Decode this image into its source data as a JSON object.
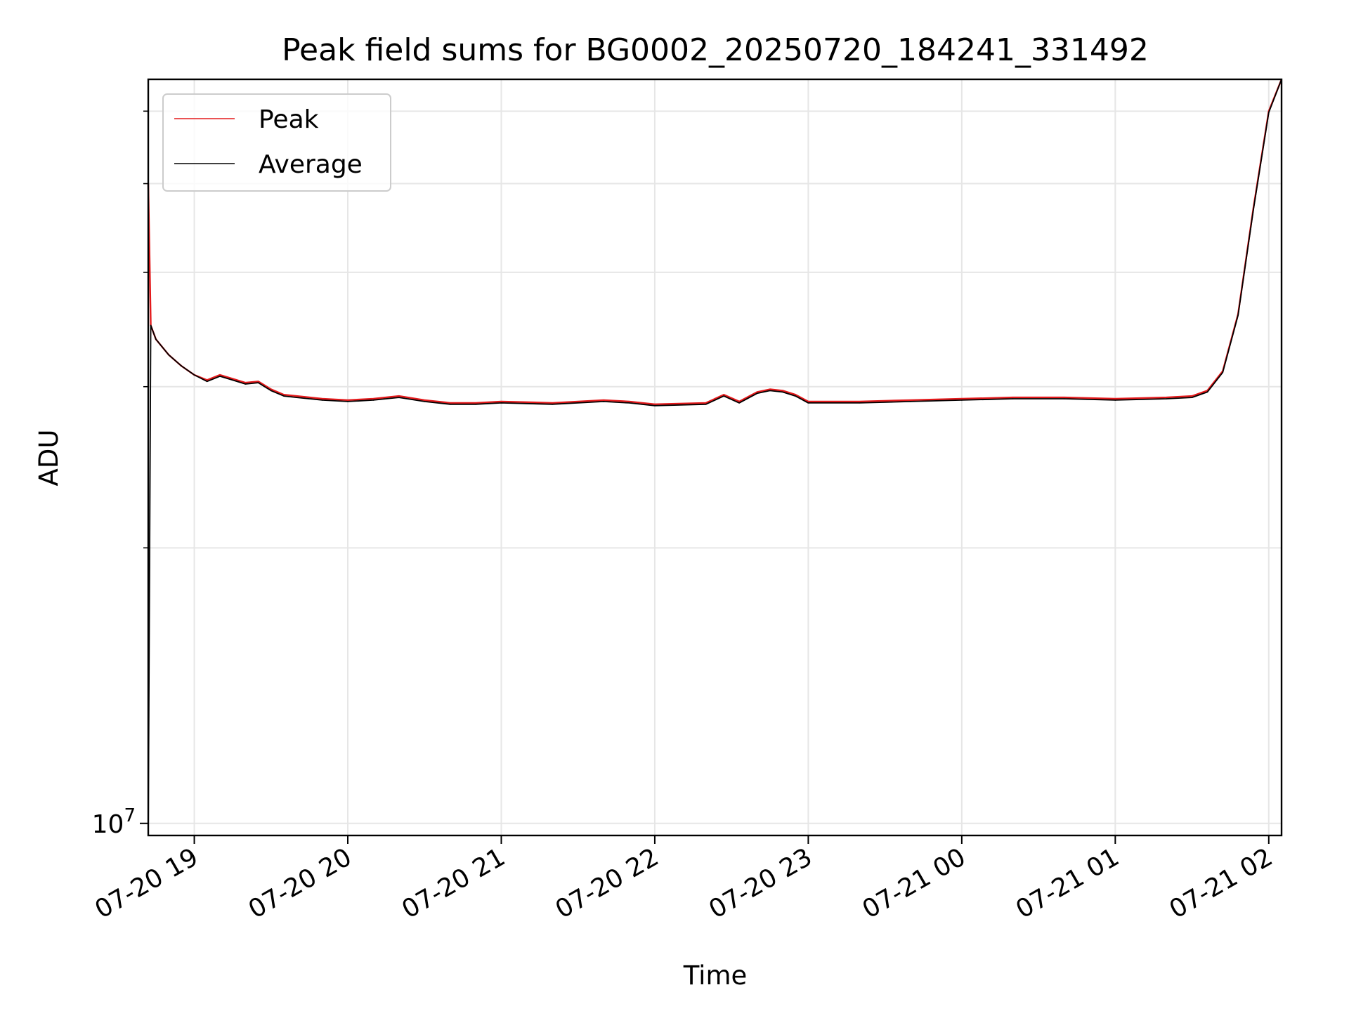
{
  "chart_data": {
    "type": "line",
    "title": "Peak field sums for BG0002_20250720_184241_331492",
    "xlabel": "Time",
    "ylabel": "ADU",
    "x_axis_type": "datetime",
    "xlim": [
      "2025-07-20 18:42",
      "2025-07-21 02:05"
    ],
    "ylim": [
      9700000,
      65000000
    ],
    "y_scale": "log",
    "grid": true,
    "legend_position": "upper left",
    "x_ticks": [
      {
        "value": "2025-07-20 19:00",
        "label": "07-20 19"
      },
      {
        "value": "2025-07-20 20:00",
        "label": "07-20 20"
      },
      {
        "value": "2025-07-20 21:00",
        "label": "07-20 21"
      },
      {
        "value": "2025-07-20 22:00",
        "label": "07-20 22"
      },
      {
        "value": "2025-07-20 23:00",
        "label": "07-20 23"
      },
      {
        "value": "2025-07-21 00:00",
        "label": "07-21 00"
      },
      {
        "value": "2025-07-21 01:00",
        "label": "07-21 01"
      },
      {
        "value": "2025-07-21 02:00",
        "label": "07-21 02"
      }
    ],
    "y_major_ticks": [
      {
        "value": 10000000,
        "base": "10",
        "exponent": "7"
      }
    ],
    "y_minor_ticks": [
      20000000,
      30000000,
      40000000,
      50000000,
      60000000
    ],
    "series": [
      {
        "name": "Peak",
        "color": "#e41a1c",
        "x": [
          "2025-07-20 18:42",
          "2025-07-20 18:43",
          "2025-07-20 18:45",
          "2025-07-20 18:50",
          "2025-07-20 18:55",
          "2025-07-20 19:00",
          "2025-07-20 19:05",
          "2025-07-20 19:10",
          "2025-07-20 19:15",
          "2025-07-20 19:20",
          "2025-07-20 19:25",
          "2025-07-20 19:30",
          "2025-07-20 19:35",
          "2025-07-20 19:40",
          "2025-07-20 19:50",
          "2025-07-20 20:00",
          "2025-07-20 20:10",
          "2025-07-20 20:20",
          "2025-07-20 20:30",
          "2025-07-20 20:40",
          "2025-07-20 20:50",
          "2025-07-20 21:00",
          "2025-07-20 21:20",
          "2025-07-20 21:40",
          "2025-07-20 21:50",
          "2025-07-20 22:00",
          "2025-07-20 22:20",
          "2025-07-20 22:27",
          "2025-07-20 22:33",
          "2025-07-20 22:40",
          "2025-07-20 22:45",
          "2025-07-20 22:50",
          "2025-07-20 22:55",
          "2025-07-20 23:00",
          "2025-07-20 23:20",
          "2025-07-20 23:40",
          "2025-07-21 00:00",
          "2025-07-21 00:20",
          "2025-07-21 00:40",
          "2025-07-21 01:00",
          "2025-07-21 01:20",
          "2025-07-21 01:30",
          "2025-07-21 01:36",
          "2025-07-21 01:42",
          "2025-07-21 01:48",
          "2025-07-21 01:54",
          "2025-07-21 02:00",
          "2025-07-21 02:05"
        ],
        "values": [
          50000000,
          35000000,
          33800000,
          32500000,
          31600000,
          30900000,
          30500000,
          30900000,
          30600000,
          30300000,
          30400000,
          29800000,
          29400000,
          29300000,
          29100000,
          29000000,
          29100000,
          29300000,
          29000000,
          28800000,
          28800000,
          28900000,
          28800000,
          29000000,
          28900000,
          28700000,
          28800000,
          29400000,
          28900000,
          29600000,
          29800000,
          29700000,
          29400000,
          28900000,
          28900000,
          29000000,
          29100000,
          29200000,
          29200000,
          29100000,
          29200000,
          29300000,
          29700000,
          31200000,
          36000000,
          47000000,
          60000000,
          65000000
        ]
      },
      {
        "name": "Average",
        "color": "#000000",
        "x": [
          "2025-07-20 18:42",
          "2025-07-20 18:43",
          "2025-07-20 18:45",
          "2025-07-20 18:50",
          "2025-07-20 18:55",
          "2025-07-20 19:00",
          "2025-07-20 19:05",
          "2025-07-20 19:10",
          "2025-07-20 19:15",
          "2025-07-20 19:20",
          "2025-07-20 19:25",
          "2025-07-20 19:30",
          "2025-07-20 19:35",
          "2025-07-20 19:40",
          "2025-07-20 19:50",
          "2025-07-20 20:00",
          "2025-07-20 20:10",
          "2025-07-20 20:20",
          "2025-07-20 20:30",
          "2025-07-20 20:40",
          "2025-07-20 20:50",
          "2025-07-20 21:00",
          "2025-07-20 21:20",
          "2025-07-20 21:40",
          "2025-07-20 21:50",
          "2025-07-20 22:00",
          "2025-07-20 22:20",
          "2025-07-20 22:27",
          "2025-07-20 22:33",
          "2025-07-20 22:40",
          "2025-07-20 22:45",
          "2025-07-20 22:50",
          "2025-07-20 22:55",
          "2025-07-20 23:00",
          "2025-07-20 23:20",
          "2025-07-20 23:40",
          "2025-07-21 00:00",
          "2025-07-21 00:20",
          "2025-07-21 00:40",
          "2025-07-21 01:00",
          "2025-07-21 01:20",
          "2025-07-21 01:30",
          "2025-07-21 01:36",
          "2025-07-21 01:42",
          "2025-07-21 01:48",
          "2025-07-21 01:54",
          "2025-07-21 02:00",
          "2025-07-21 02:05"
        ],
        "values": [
          9700000,
          35000000,
          33800000,
          32500000,
          31600000,
          30900000,
          30400000,
          30800000,
          30500000,
          30200000,
          30300000,
          29700000,
          29300000,
          29200000,
          29000000,
          28900000,
          29000000,
          29200000,
          28900000,
          28700000,
          28700000,
          28800000,
          28700000,
          28900000,
          28800000,
          28600000,
          28700000,
          29300000,
          28800000,
          29500000,
          29700000,
          29600000,
          29300000,
          28800000,
          28800000,
          28900000,
          29000000,
          29100000,
          29100000,
          29000000,
          29100000,
          29200000,
          29600000,
          31100000,
          35900000,
          46800000,
          59800000,
          65000000
        ]
      }
    ]
  }
}
